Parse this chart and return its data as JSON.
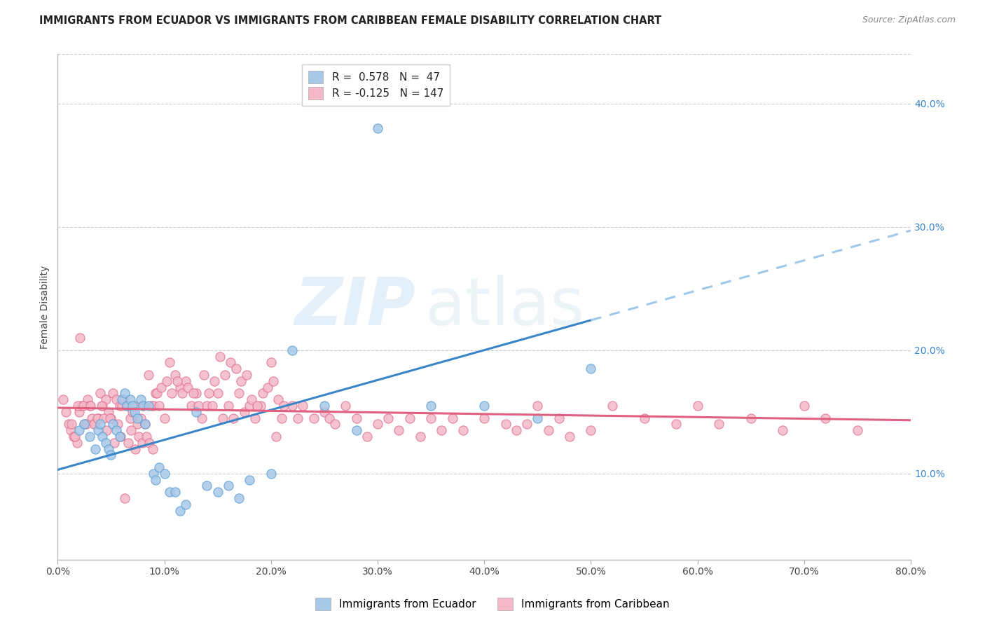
{
  "title": "IMMIGRANTS FROM ECUADOR VS IMMIGRANTS FROM CARIBBEAN FEMALE DISABILITY CORRELATION CHART",
  "source": "Source: ZipAtlas.com",
  "ylabel": "Female Disability",
  "right_yticks": [
    "10.0%",
    "20.0%",
    "30.0%",
    "40.0%"
  ],
  "right_ytick_vals": [
    0.1,
    0.2,
    0.3,
    0.4
  ],
  "xlim": [
    0.0,
    0.8
  ],
  "ylim": [
    0.03,
    0.44
  ],
  "ecuador_color": "#a8c8e8",
  "ecuador_color_dark": "#5a9fd4",
  "caribbean_color": "#f4b8c8",
  "caribbean_color_dark": "#e07090",
  "ecuador_R": 0.578,
  "ecuador_N": 47,
  "caribbean_R": -0.125,
  "caribbean_N": 147,
  "watermark_zip": "ZIP",
  "watermark_atlas": "atlas",
  "legend_label_1": "Immigrants from Ecuador",
  "legend_label_2": "Immigrants from Caribbean",
  "ecuador_scatter_x": [
    0.02,
    0.025,
    0.03,
    0.035,
    0.038,
    0.04,
    0.042,
    0.045,
    0.048,
    0.05,
    0.052,
    0.055,
    0.058,
    0.06,
    0.063,
    0.065,
    0.068,
    0.07,
    0.072,
    0.075,
    0.078,
    0.08,
    0.082,
    0.085,
    0.09,
    0.092,
    0.095,
    0.1,
    0.105,
    0.11,
    0.115,
    0.12,
    0.13,
    0.14,
    0.15,
    0.16,
    0.17,
    0.18,
    0.2,
    0.22,
    0.25,
    0.28,
    0.3,
    0.35,
    0.4,
    0.45,
    0.5
  ],
  "ecuador_scatter_y": [
    0.135,
    0.14,
    0.13,
    0.12,
    0.135,
    0.14,
    0.13,
    0.125,
    0.12,
    0.115,
    0.14,
    0.135,
    0.13,
    0.16,
    0.165,
    0.155,
    0.16,
    0.155,
    0.15,
    0.145,
    0.16,
    0.155,
    0.14,
    0.155,
    0.1,
    0.095,
    0.105,
    0.1,
    0.085,
    0.085,
    0.07,
    0.075,
    0.15,
    0.09,
    0.085,
    0.09,
    0.08,
    0.095,
    0.1,
    0.2,
    0.155,
    0.135,
    0.38,
    0.155,
    0.155,
    0.145,
    0.185
  ],
  "caribbean_scatter_x": [
    0.01,
    0.012,
    0.015,
    0.018,
    0.02,
    0.022,
    0.025,
    0.028,
    0.03,
    0.032,
    0.035,
    0.038,
    0.04,
    0.042,
    0.045,
    0.048,
    0.05,
    0.052,
    0.055,
    0.058,
    0.06,
    0.062,
    0.065,
    0.068,
    0.07,
    0.072,
    0.075,
    0.078,
    0.08,
    0.082,
    0.085,
    0.088,
    0.09,
    0.092,
    0.095,
    0.1,
    0.105,
    0.11,
    0.115,
    0.12,
    0.125,
    0.13,
    0.135,
    0.14,
    0.145,
    0.15,
    0.155,
    0.16,
    0.165,
    0.17,
    0.175,
    0.18,
    0.185,
    0.19,
    0.2,
    0.205,
    0.21,
    0.22,
    0.225,
    0.23,
    0.24,
    0.25,
    0.255,
    0.26,
    0.27,
    0.28,
    0.29,
    0.3,
    0.31,
    0.32,
    0.33,
    0.34,
    0.35,
    0.36,
    0.37,
    0.38,
    0.4,
    0.42,
    0.43,
    0.44,
    0.45,
    0.46,
    0.47,
    0.48,
    0.5,
    0.52,
    0.55,
    0.58,
    0.6,
    0.62,
    0.65,
    0.68,
    0.7,
    0.72,
    0.75,
    0.005,
    0.008,
    0.013,
    0.016,
    0.019,
    0.021,
    0.024,
    0.027,
    0.031,
    0.034,
    0.037,
    0.041,
    0.043,
    0.046,
    0.049,
    0.053,
    0.056,
    0.059,
    0.063,
    0.066,
    0.069,
    0.073,
    0.076,
    0.079,
    0.083,
    0.086,
    0.089,
    0.093,
    0.097,
    0.102,
    0.107,
    0.112,
    0.117,
    0.122,
    0.127,
    0.132,
    0.137,
    0.142,
    0.147,
    0.152,
    0.157,
    0.162,
    0.167,
    0.172,
    0.177,
    0.182,
    0.187,
    0.192,
    0.197,
    0.202,
    0.207,
    0.212
  ],
  "caribbean_scatter_y": [
    0.14,
    0.135,
    0.13,
    0.125,
    0.15,
    0.155,
    0.14,
    0.16,
    0.155,
    0.145,
    0.14,
    0.145,
    0.165,
    0.155,
    0.16,
    0.15,
    0.145,
    0.165,
    0.16,
    0.155,
    0.155,
    0.16,
    0.155,
    0.145,
    0.15,
    0.155,
    0.14,
    0.145,
    0.155,
    0.14,
    0.18,
    0.155,
    0.155,
    0.165,
    0.155,
    0.145,
    0.19,
    0.18,
    0.17,
    0.175,
    0.155,
    0.165,
    0.145,
    0.155,
    0.155,
    0.165,
    0.145,
    0.155,
    0.145,
    0.165,
    0.15,
    0.155,
    0.145,
    0.155,
    0.19,
    0.13,
    0.145,
    0.155,
    0.145,
    0.155,
    0.145,
    0.15,
    0.145,
    0.14,
    0.155,
    0.145,
    0.13,
    0.14,
    0.145,
    0.135,
    0.145,
    0.13,
    0.145,
    0.135,
    0.145,
    0.135,
    0.145,
    0.14,
    0.135,
    0.14,
    0.155,
    0.135,
    0.145,
    0.13,
    0.135,
    0.155,
    0.145,
    0.14,
    0.155,
    0.14,
    0.145,
    0.135,
    0.155,
    0.145,
    0.135,
    0.16,
    0.15,
    0.14,
    0.13,
    0.155,
    0.21,
    0.155,
    0.14,
    0.155,
    0.14,
    0.145,
    0.155,
    0.145,
    0.135,
    0.145,
    0.125,
    0.14,
    0.13,
    0.08,
    0.125,
    0.135,
    0.12,
    0.13,
    0.125,
    0.13,
    0.125,
    0.12,
    0.165,
    0.17,
    0.175,
    0.165,
    0.175,
    0.165,
    0.17,
    0.165,
    0.155,
    0.18,
    0.165,
    0.175,
    0.195,
    0.18,
    0.19,
    0.185,
    0.175,
    0.18,
    0.16,
    0.155,
    0.165,
    0.17,
    0.175,
    0.16,
    0.155
  ]
}
